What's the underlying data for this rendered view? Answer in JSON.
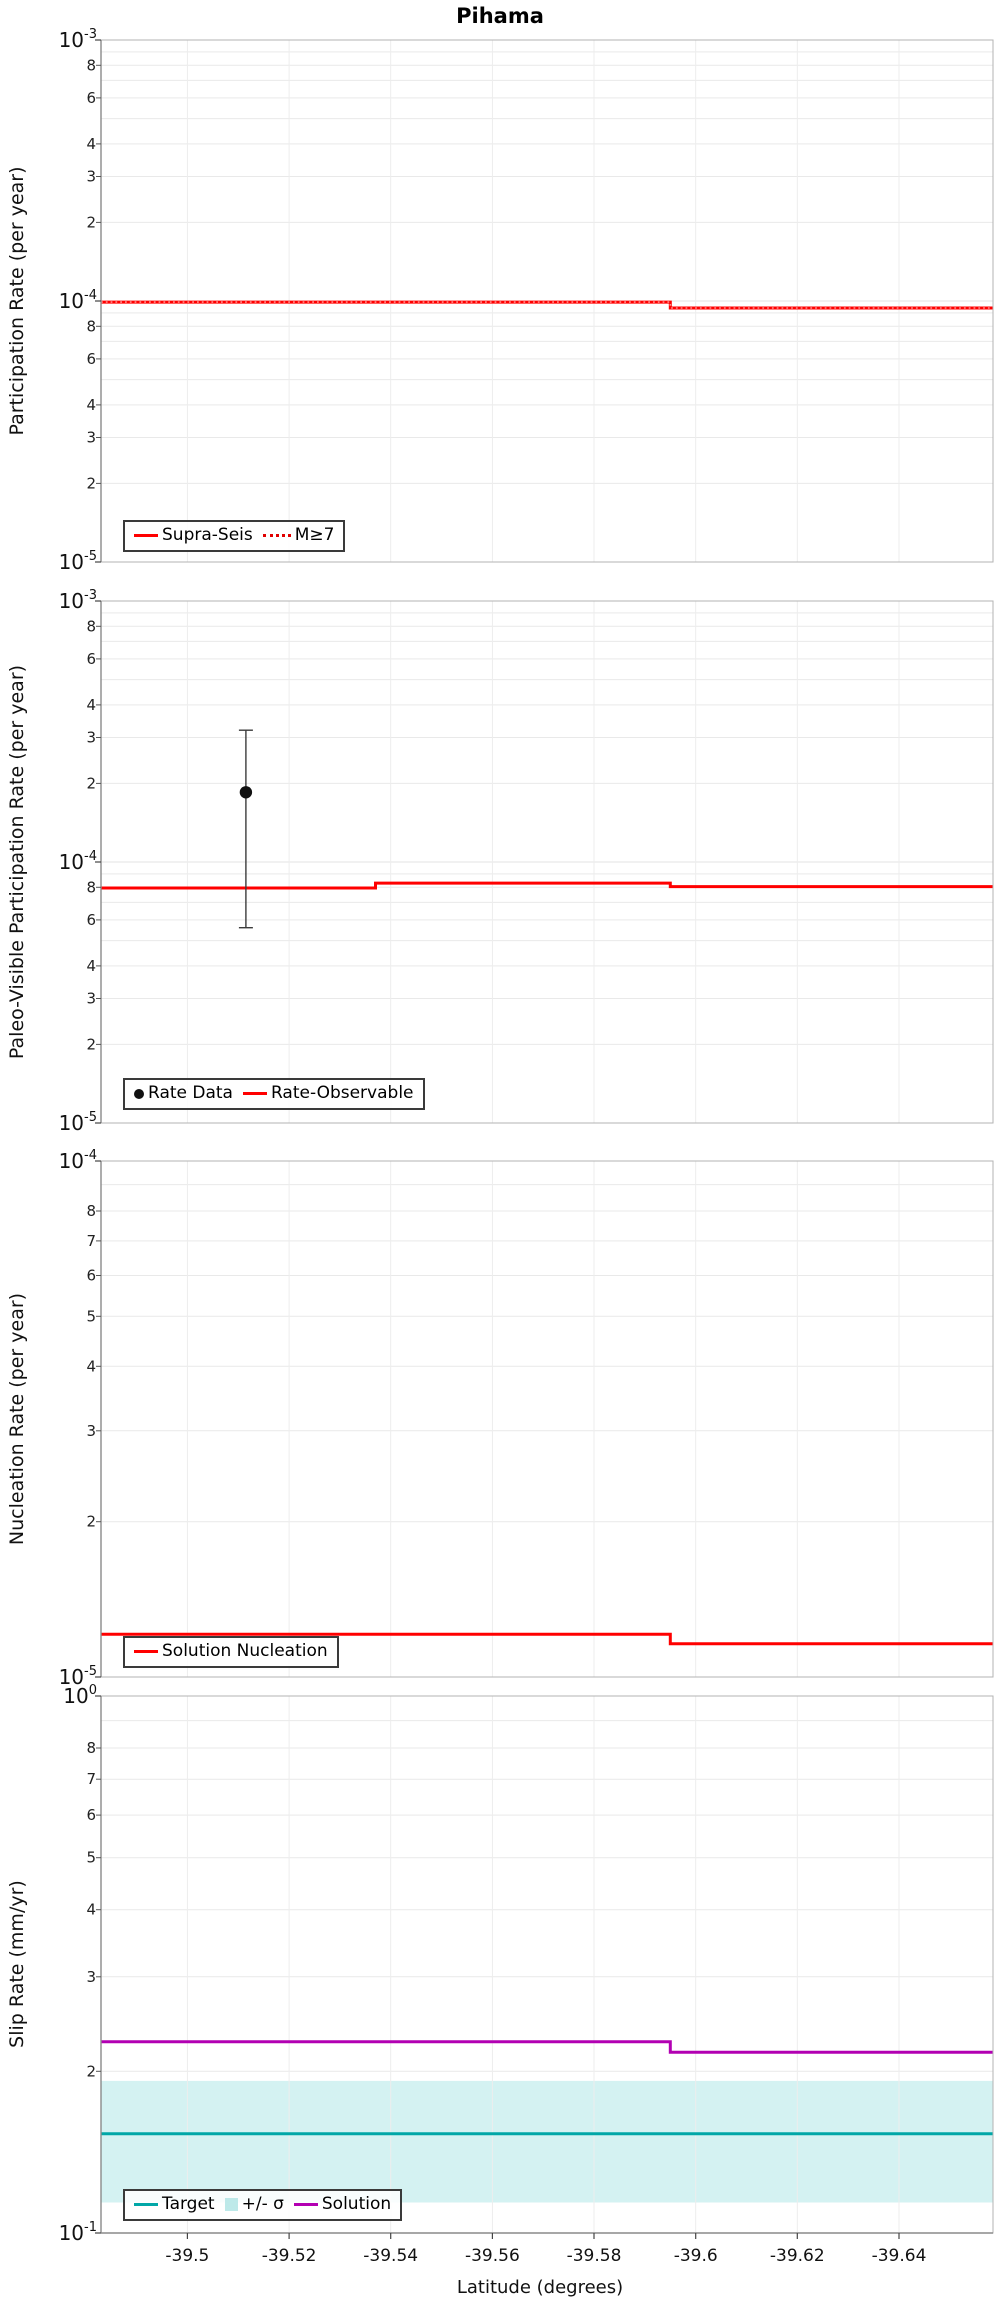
{
  "title": "Pihama",
  "x_axis": {
    "label": "Latitude (degrees)",
    "left_value": -39.483,
    "right_value": -39.6585,
    "ticks": [
      -39.5,
      -39.52,
      -39.54,
      -39.56,
      -39.58,
      -39.6,
      -39.62,
      -39.64
    ],
    "tick_labels": [
      "-39.5",
      "-39.52",
      "-39.54",
      "-39.56",
      "-39.58",
      "-39.6",
      "-39.62",
      "-39.64"
    ],
    "grid": true
  },
  "colors": {
    "red": "#FF0000",
    "red_dotted_overlay": "#FF8A8A",
    "teal": "#00A7A7",
    "magenta": "#B200B2",
    "band_fill": "#00B2B2",
    "point_black": "#111111",
    "error_bar": "#3C3C3C"
  },
  "chart_data": [
    {
      "type": "line",
      "id": "participation",
      "ylabel": "Participation Rate (per year)",
      "ylim": [
        1e-05,
        0.001
      ],
      "y_log_range": [
        -5,
        -3
      ],
      "decade_exponents": [
        -3,
        -4,
        -5
      ],
      "minor_tick_labels": [
        8,
        6,
        4,
        3,
        2
      ],
      "series": [
        {
          "name": "Supra-Seis",
          "color": "#FF0000",
          "width": 3,
          "dash": "solid",
          "x": [
            -39.483,
            -39.595,
            -39.595,
            -39.6585
          ],
          "y": [
            9.9e-05,
            9.9e-05,
            9.4e-05,
            9.4e-05
          ]
        },
        {
          "name": "M≥7",
          "color": "#FF8A8A",
          "width": 1.6,
          "dash": "dotted",
          "x": [
            -39.483,
            -39.595,
            -39.595,
            -39.6585
          ],
          "y": [
            9.9e-05,
            9.9e-05,
            9.4e-05,
            9.4e-05
          ]
        }
      ],
      "legend": {
        "items": [
          {
            "sample": "line",
            "color": "#FF0000",
            "label": "Supra-Seis"
          },
          {
            "sample": "dotted",
            "color": "#E00000",
            "label": "M≥7"
          }
        ]
      }
    },
    {
      "type": "line",
      "id": "paleo-visible",
      "ylabel": "Paleo-Visible Participation Rate (per year)",
      "ylim": [
        1e-05,
        0.001
      ],
      "y_log_range": [
        -5,
        -3
      ],
      "decade_exponents": [
        -3,
        -4,
        -5
      ],
      "minor_tick_labels": [
        8,
        6,
        4,
        3,
        2
      ],
      "series": [
        {
          "name": "Rate-Observable",
          "color": "#FF0000",
          "width": 3,
          "dash": "solid",
          "x": [
            -39.483,
            -39.537,
            -39.537,
            -39.595,
            -39.595,
            -39.6585
          ],
          "y": [
            7.95e-05,
            7.95e-05,
            8.3e-05,
            8.3e-05,
            8.05e-05,
            8.05e-05
          ]
        }
      ],
      "points": [
        {
          "name": "Rate Data",
          "x": -39.5115,
          "y": 0.000185,
          "y_hi": 0.00032,
          "y_lo": 5.6e-05,
          "color": "#111111",
          "error_color": "#3C3C3C"
        }
      ],
      "legend": {
        "items": [
          {
            "sample": "marker",
            "color": "#111111",
            "label": "Rate Data"
          },
          {
            "sample": "line",
            "color": "#FF0000",
            "label": "Rate-Observable"
          }
        ]
      }
    },
    {
      "type": "line",
      "id": "nucleation",
      "ylabel": "Nucleation Rate (per year)",
      "ylim": [
        1e-05,
        0.0001
      ],
      "y_log_range": [
        -5,
        -4
      ],
      "decade_exponents": [
        -4,
        -5
      ],
      "minor_tick_labels": [
        8,
        7,
        6,
        5,
        4,
        3,
        2
      ],
      "series": [
        {
          "name": "Solution Nucleation",
          "color": "#FF0000",
          "width": 3,
          "dash": "solid",
          "x": [
            -39.483,
            -39.595,
            -39.595,
            -39.6585
          ],
          "y": [
            1.21e-05,
            1.21e-05,
            1.16e-05,
            1.16e-05
          ]
        }
      ],
      "legend": {
        "items": [
          {
            "sample": "line",
            "color": "#FF0000",
            "label": "Solution Nucleation"
          }
        ]
      }
    },
    {
      "type": "line",
      "id": "slip-rate",
      "ylabel": "Slip Rate (mm/yr)",
      "ylim": [
        0.1,
        1.0
      ],
      "y_log_range": [
        -1,
        0
      ],
      "decade_exponents": [
        0,
        -1
      ],
      "minor_tick_labels": [
        8,
        7,
        6,
        5,
        4,
        3,
        2
      ],
      "band": {
        "label": "+/- σ",
        "lo": 0.114,
        "hi": 0.192,
        "color": "#00B2B2",
        "opacity": 0.17
      },
      "series": [
        {
          "name": "Target",
          "color": "#00A7A7",
          "width": 3,
          "dash": "solid",
          "x": [
            -39.483,
            -39.6585
          ],
          "y": [
            0.153,
            0.153
          ]
        },
        {
          "name": "Solution",
          "color": "#B200B2",
          "width": 3,
          "dash": "solid",
          "x": [
            -39.483,
            -39.595,
            -39.595,
            -39.6585
          ],
          "y": [
            0.227,
            0.227,
            0.217,
            0.217
          ]
        }
      ],
      "legend": {
        "items": [
          {
            "sample": "line",
            "color": "#00A7A7",
            "label": "Target"
          },
          {
            "sample": "patch",
            "color": "#BDE9E9",
            "label": "+/- σ"
          },
          {
            "sample": "line",
            "color": "#B200B2",
            "label": "Solution"
          }
        ]
      }
    }
  ]
}
